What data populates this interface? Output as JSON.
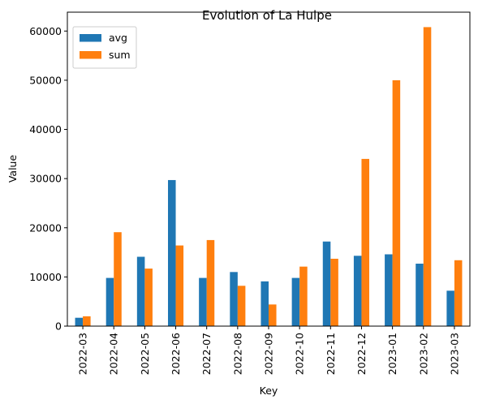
{
  "chart_data": {
    "type": "bar",
    "title": "Evolution of La Hulpe",
    "xlabel": "Key",
    "ylabel": "Value",
    "categories": [
      "2022-03",
      "2022-04",
      "2022-05",
      "2022-06",
      "2022-07",
      "2022-08",
      "2022-09",
      "2022-10",
      "2022-11",
      "2022-12",
      "2023-01",
      "2023-02",
      "2023-03"
    ],
    "series": [
      {
        "name": "avg",
        "color": "#1f77b4",
        "values": [
          1700,
          9800,
          14100,
          29700,
          9800,
          11000,
          9100,
          9800,
          17200,
          14300,
          14600,
          12700,
          7200
        ]
      },
      {
        "name": "sum",
        "color": "#ff7f0e",
        "values": [
          2000,
          19100,
          11700,
          16400,
          17500,
          8200,
          4400,
          12100,
          13700,
          34000,
          50000,
          60800,
          13400
        ]
      }
    ],
    "ylim": [
      0,
      63840
    ],
    "yticks": [
      0,
      10000,
      20000,
      30000,
      40000,
      50000,
      60000
    ],
    "legend": "top-left",
    "grid": false
  }
}
